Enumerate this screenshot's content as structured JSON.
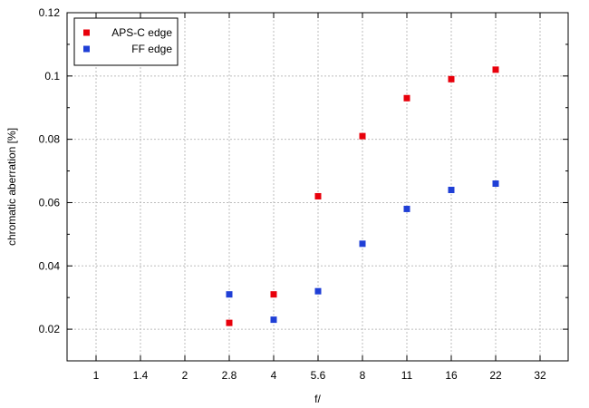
{
  "chart_data": {
    "type": "scatter",
    "title": "",
    "xlabel": "f/",
    "ylabel": "chromatic aberration [%]",
    "categories": [
      "1",
      "1.4",
      "2",
      "2.8",
      "4",
      "5.6",
      "8",
      "11",
      "16",
      "22",
      "32"
    ],
    "y_ticks": [
      "0.02",
      "0.04",
      "0.06",
      "0.08",
      "0.1",
      "0.12"
    ],
    "ylim": [
      0.01,
      0.12
    ],
    "grid": true,
    "legend_position": "top-left",
    "series": [
      {
        "name": "APS-C edge",
        "color": "#e8000b",
        "marker": "square",
        "points": [
          {
            "x": "2.8",
            "y": 0.022
          },
          {
            "x": "4",
            "y": 0.031
          },
          {
            "x": "5.6",
            "y": 0.062
          },
          {
            "x": "8",
            "y": 0.081
          },
          {
            "x": "11",
            "y": 0.093
          },
          {
            "x": "16",
            "y": 0.099
          },
          {
            "x": "22",
            "y": 0.102
          }
        ]
      },
      {
        "name": "FF edge",
        "color": "#1f3fd6",
        "marker": "square",
        "points": [
          {
            "x": "2.8",
            "y": 0.031
          },
          {
            "x": "4",
            "y": 0.023
          },
          {
            "x": "5.6",
            "y": 0.032
          },
          {
            "x": "8",
            "y": 0.047
          },
          {
            "x": "11",
            "y": 0.058
          },
          {
            "x": "16",
            "y": 0.064
          },
          {
            "x": "22",
            "y": 0.066
          }
        ]
      }
    ]
  }
}
